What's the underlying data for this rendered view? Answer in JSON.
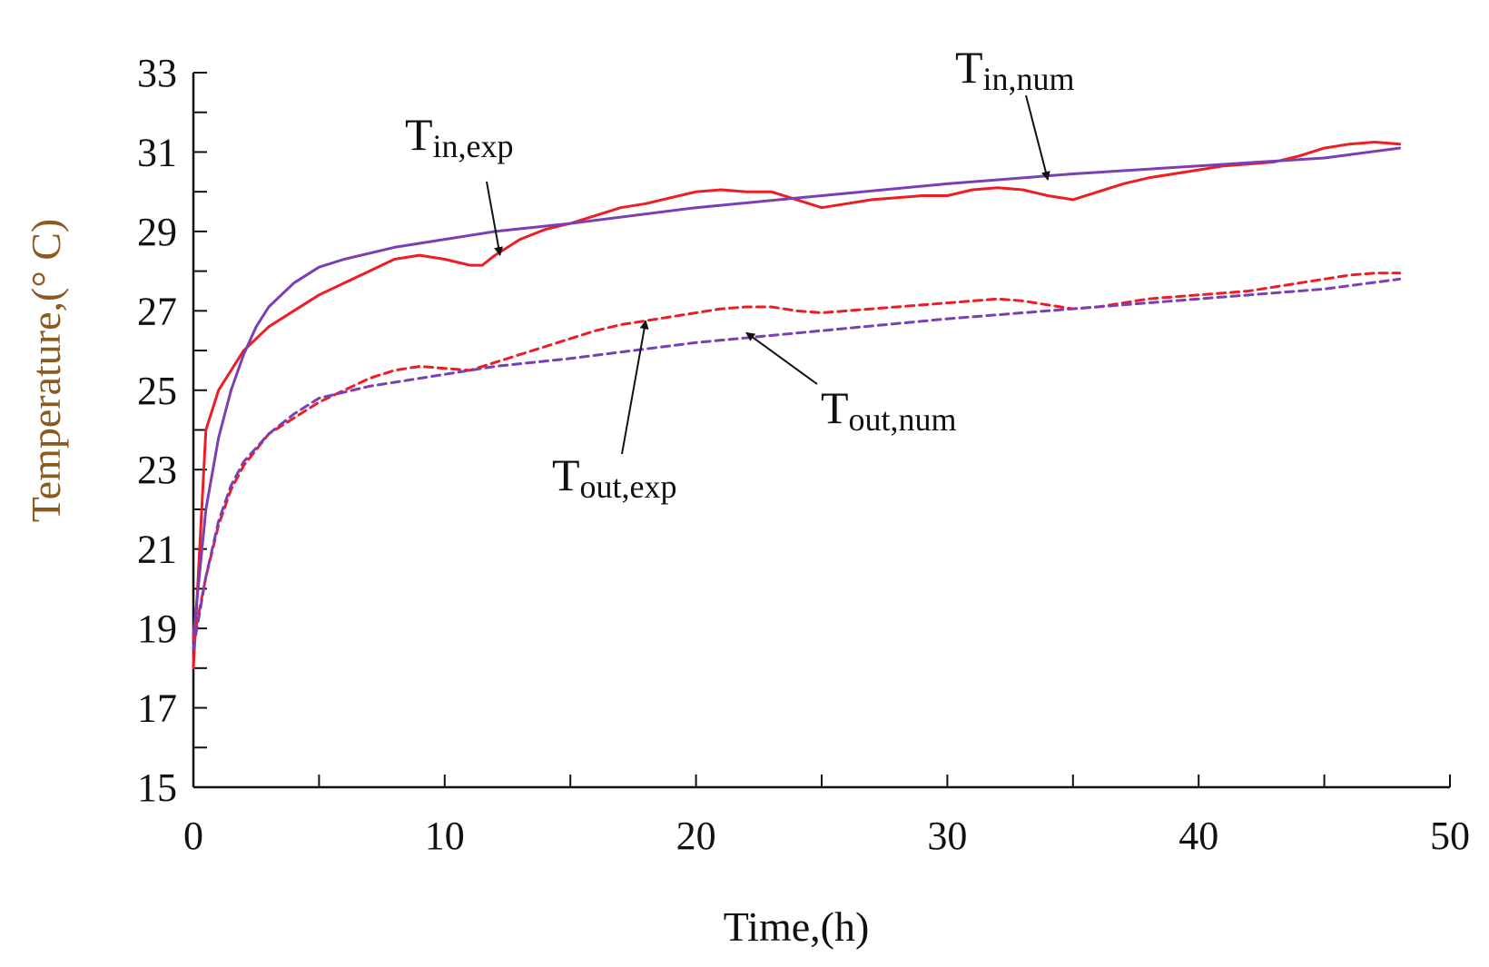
{
  "chart_data": {
    "type": "line",
    "title": "",
    "xlabel": "Time,(h)",
    "ylabel": "Temperature,(°  C)",
    "xlim": [
      0,
      50
    ],
    "ylim": [
      15,
      33
    ],
    "x_ticks": [
      0,
      10,
      20,
      30,
      40,
      50
    ],
    "y_ticks": [
      15,
      17,
      19,
      21,
      23,
      25,
      27,
      29,
      31,
      33
    ],
    "x_minor_step": 5,
    "y_minor_step": 1,
    "grid": false,
    "colors": {
      "exp": "#ee1c25",
      "num": "#7a3fb5",
      "axis": "#111111",
      "ylabel": "#8a5a1e"
    },
    "series": [
      {
        "name": "T_in,exp",
        "style": "solid",
        "color": "#ee1c25",
        "x": [
          0,
          0.5,
          1,
          1.5,
          2,
          2.5,
          3,
          4,
          5,
          6,
          7,
          8,
          9,
          10,
          11,
          11.5,
          12,
          13,
          14,
          15,
          16,
          17,
          18,
          19,
          20,
          21,
          22,
          23,
          24,
          25,
          26,
          27,
          28,
          29,
          30,
          31,
          32,
          33,
          34,
          35,
          36,
          37,
          38,
          39,
          40,
          41,
          42,
          43,
          44,
          45,
          46,
          47,
          48
        ],
        "y": [
          18,
          24,
          25,
          25.5,
          26,
          26.3,
          26.6,
          27,
          27.4,
          27.7,
          28,
          28.3,
          28.4,
          28.3,
          28.15,
          28.15,
          28.4,
          28.8,
          29.05,
          29.2,
          29.4,
          29.6,
          29.7,
          29.85,
          30,
          30.05,
          30,
          30,
          29.8,
          29.6,
          29.7,
          29.8,
          29.85,
          29.9,
          29.9,
          30.05,
          30.1,
          30.05,
          29.9,
          29.8,
          30,
          30.2,
          30.35,
          30.45,
          30.55,
          30.65,
          30.7,
          30.75,
          30.9,
          31.1,
          31.2,
          31.25,
          31.2
        ]
      },
      {
        "name": "T_in,num",
        "style": "solid",
        "color": "#7a3fb5",
        "x": [
          0,
          0.5,
          1,
          1.5,
          2,
          2.5,
          3,
          4,
          5,
          6,
          8,
          10,
          12,
          15,
          20,
          25,
          30,
          35,
          40,
          45,
          48
        ],
        "y": [
          18.8,
          22,
          23.8,
          25,
          25.9,
          26.6,
          27.1,
          27.7,
          28.1,
          28.3,
          28.6,
          28.8,
          29.0,
          29.2,
          29.6,
          29.9,
          30.2,
          30.45,
          30.65,
          30.85,
          31.1
        ]
      },
      {
        "name": "T_out,exp",
        "style": "dashed",
        "color": "#ee1c25",
        "x": [
          0,
          0.5,
          1,
          1.5,
          2,
          3,
          4,
          5,
          6,
          7,
          8,
          9,
          10,
          11,
          12,
          13,
          14,
          15,
          16,
          17,
          18,
          19,
          20,
          21,
          22,
          23,
          24,
          25,
          26,
          27,
          28,
          29,
          30,
          31,
          32,
          33,
          34,
          35,
          36,
          37,
          38,
          39,
          40,
          41,
          42,
          43,
          44,
          45,
          46,
          47,
          48
        ],
        "y": [
          18.7,
          20.3,
          21.6,
          22.5,
          23.1,
          23.9,
          24.3,
          24.7,
          25.0,
          25.3,
          25.5,
          25.6,
          25.55,
          25.5,
          25.7,
          25.9,
          26.1,
          26.3,
          26.5,
          26.65,
          26.75,
          26.85,
          26.95,
          27.05,
          27.1,
          27.1,
          27.0,
          26.95,
          27.0,
          27.05,
          27.1,
          27.15,
          27.2,
          27.25,
          27.3,
          27.25,
          27.15,
          27.05,
          27.1,
          27.2,
          27.3,
          27.35,
          27.4,
          27.45,
          27.5,
          27.6,
          27.7,
          27.8,
          27.9,
          27.95,
          27.95
        ]
      },
      {
        "name": "T_out,num",
        "style": "dashed",
        "color": "#7a3fb5",
        "x": [
          0,
          0.5,
          1,
          1.5,
          2,
          3,
          4,
          5,
          7,
          10,
          12,
          15,
          20,
          25,
          30,
          35,
          40,
          45,
          48
        ],
        "y": [
          18.5,
          20.3,
          21.7,
          22.6,
          23.2,
          23.9,
          24.4,
          24.8,
          25.1,
          25.4,
          25.6,
          25.8,
          26.2,
          26.5,
          26.8,
          27.05,
          27.3,
          27.55,
          27.8
        ]
      }
    ],
    "annotations": [
      {
        "id": "in-exp",
        "main": "T",
        "sub": "in,exp",
        "arrow_to": [
          12.2,
          28.4
        ]
      },
      {
        "id": "in-num",
        "main": "T",
        "sub": "in,num",
        "arrow_to": [
          34,
          30.3
        ]
      },
      {
        "id": "out-exp",
        "main": "T",
        "sub": "out,exp",
        "arrow_to": [
          18,
          26.75
        ]
      },
      {
        "id": "out-num",
        "main": "T",
        "sub": "out,num",
        "arrow_to": [
          22,
          26.45
        ]
      }
    ]
  }
}
